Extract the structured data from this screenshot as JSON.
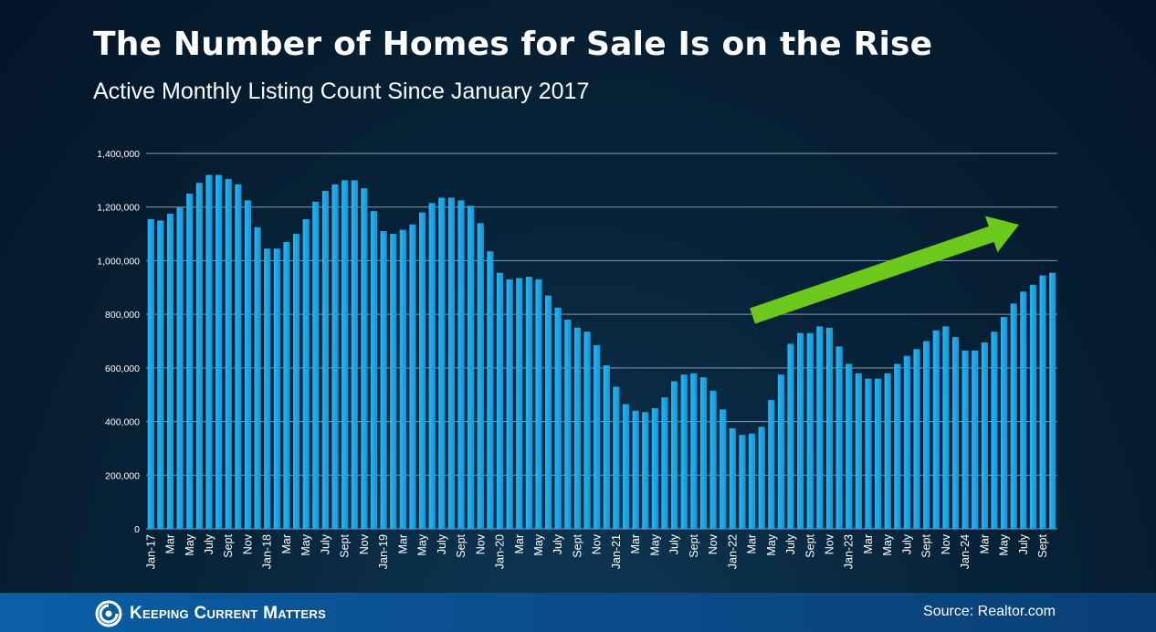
{
  "header": {
    "title": "The Number of Homes for Sale Is on the Rise",
    "subtitle": "Active Monthly Listing Count Since January 2017"
  },
  "footer": {
    "brand": "Keeping Current Matters",
    "source": "Source: Realtor.com",
    "logo_icon": "spiral-logo-icon"
  },
  "colors": {
    "bar": "#1ea6e6",
    "arrow": "#6cc81b",
    "grid": "#8c9aa6",
    "footer": "#0a5fa6"
  },
  "chart_data": {
    "type": "bar",
    "title": "The Number of Homes for Sale Is on the Rise",
    "subtitle": "Active Monthly Listing Count Since January 2017",
    "ylim": [
      0,
      1400000
    ],
    "y_ticks": [
      "0",
      "200,000",
      "400,000",
      "600,000",
      "800,000",
      "1,000,000",
      "1,200,000",
      "1,400,000"
    ],
    "y_tick_values": [
      0,
      200000,
      400000,
      600000,
      800000,
      1000000,
      1200000,
      1400000
    ],
    "grid": true,
    "x_tick_labels": [
      "Jan-17",
      "Mar",
      "May",
      "July",
      "Sept",
      "Nov",
      "Jan-18",
      "Mar",
      "May",
      "July",
      "Sept",
      "Nov",
      "Jan-19",
      "Mar",
      "May",
      "July",
      "Sept",
      "Nov",
      "Jan-20",
      "Mar",
      "May",
      "July",
      "Sept",
      "Nov",
      "Jan-21",
      "Mar",
      "May",
      "July",
      "Sept",
      "Nov",
      "Jan-22",
      "Mar",
      "May",
      "July",
      "Sept",
      "Nov",
      "Jan-23",
      "Mar",
      "May",
      "July",
      "Sept",
      "Nov",
      "Jan-24",
      "Mar",
      "May",
      "July",
      "Sept"
    ],
    "x_tick_every": 2,
    "annotation": "upward trend arrow",
    "series": [
      {
        "values": [
          1155000,
          1150000,
          1175000,
          1200000,
          1250000,
          1290000,
          1320000,
          1320000,
          1305000,
          1285000,
          1225000,
          1125000,
          1045000,
          1045000,
          1070000,
          1100000,
          1155000,
          1220000,
          1260000,
          1285000,
          1300000,
          1300000,
          1270000,
          1185000,
          1110000,
          1100000,
          1115000,
          1135000,
          1180000,
          1215000,
          1235000,
          1235000,
          1225000,
          1205000,
          1140000,
          1035000,
          955000,
          930000,
          935000,
          940000,
          930000,
          870000,
          825000,
          780000,
          750000,
          735000,
          685000,
          610000,
          530000,
          465000,
          440000,
          435000,
          450000,
          490000,
          550000,
          575000,
          580000,
          565000,
          515000,
          445000,
          375000,
          350000,
          355000,
          380000,
          480000,
          575000,
          690000,
          730000,
          730000,
          755000,
          750000,
          680000,
          615000,
          580000,
          560000,
          560000,
          580000,
          615000,
          645000,
          670000,
          700000,
          740000,
          755000,
          715000,
          665000,
          665000,
          695000,
          735000,
          790000,
          840000,
          885000,
          910000,
          945000,
          955000
        ]
      }
    ]
  }
}
